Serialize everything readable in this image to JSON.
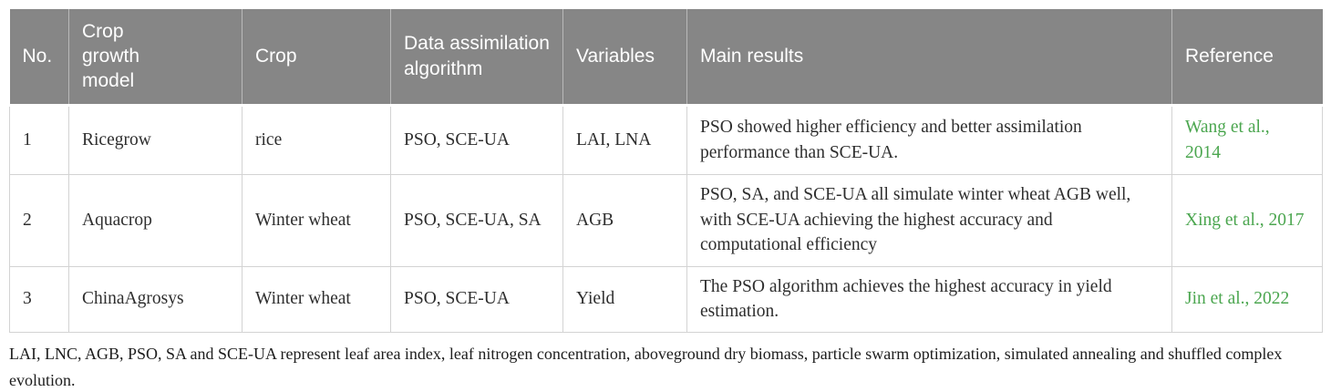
{
  "colors": {
    "header_bg": "#868686",
    "header_text": "#ffffff",
    "reference_green": "#4ba64f",
    "body_text": "#2e2e2e",
    "grid_border": "#d3d3d3"
  },
  "table": {
    "headers": [
      "No.",
      "Crop growth model",
      "Crop",
      "Data assimilation algorithm",
      "Variables",
      "Main results",
      "Reference"
    ],
    "rows": [
      {
        "no": "1",
        "model": "Ricegrow",
        "crop": "rice",
        "algorithm": "PSO, SCE-UA",
        "variables": "LAI, LNA",
        "results": "PSO showed higher efficiency and better assimilation performance than SCE-UA.",
        "reference": "Wang et al., 2014"
      },
      {
        "no": "2",
        "model": "Aquacrop",
        "crop": "Winter wheat",
        "algorithm": "PSO, SCE-UA, SA",
        "variables": "AGB",
        "results": "PSO, SA, and SCE-UA all simulate winter wheat AGB well, with SCE-UA achieving the highest accuracy and computational efficiency",
        "reference": "Xing et al., 2017"
      },
      {
        "no": "3",
        "model": "ChinaAgrosys",
        "crop": "Winter wheat",
        "algorithm": "PSO, SCE-UA",
        "variables": "Yield",
        "results": "The PSO algorithm achieves the highest accuracy in yield estimation.",
        "reference": "Jin et al., 2022"
      }
    ],
    "footnote": "LAI, LNC, AGB, PSO, SA and SCE-UA represent leaf area index, leaf nitrogen concentration, aboveground dry biomass, particle swarm optimization, simulated annealing and shuffled complex evolution."
  }
}
